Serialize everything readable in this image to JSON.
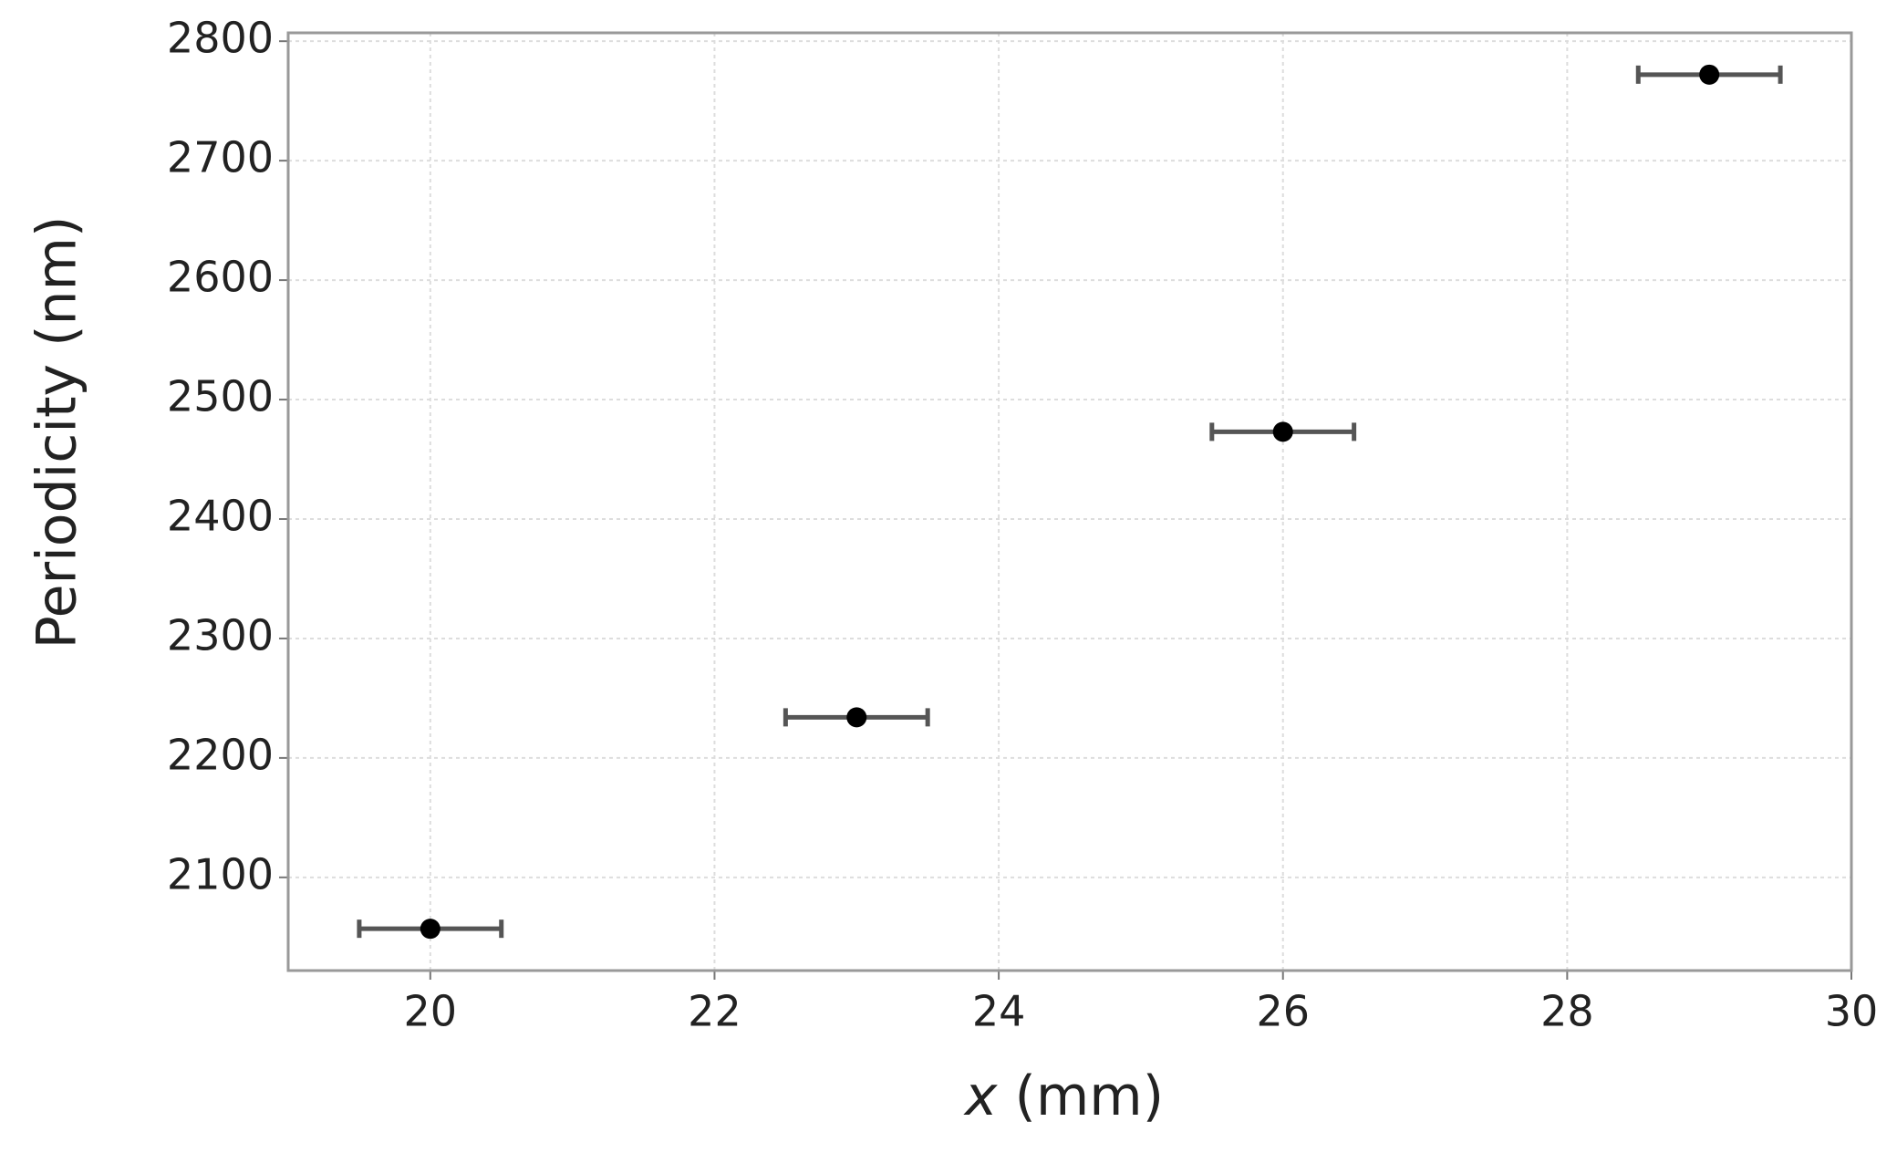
{
  "chart_data": {
    "type": "scatter",
    "ylabel": "Periodicity (nm)",
    "xlabel": {
      "symbol": "x",
      "unit": "(mm)"
    },
    "xlim": [
      19,
      30
    ],
    "ylim": [
      2022,
      2807
    ],
    "xticks": [
      20,
      22,
      24,
      26,
      28,
      30
    ],
    "yticks": [
      2100,
      2200,
      2300,
      2400,
      2500,
      2600,
      2700,
      2800
    ],
    "grid": true,
    "series": [
      {
        "color": "#000000",
        "errcolor": "#555555",
        "x": [
          20,
          23,
          26,
          29
        ],
        "values": [
          2057,
          2234,
          2473,
          2772
        ],
        "xerr": [
          0.5,
          0.5,
          0.5,
          0.5
        ]
      }
    ]
  }
}
